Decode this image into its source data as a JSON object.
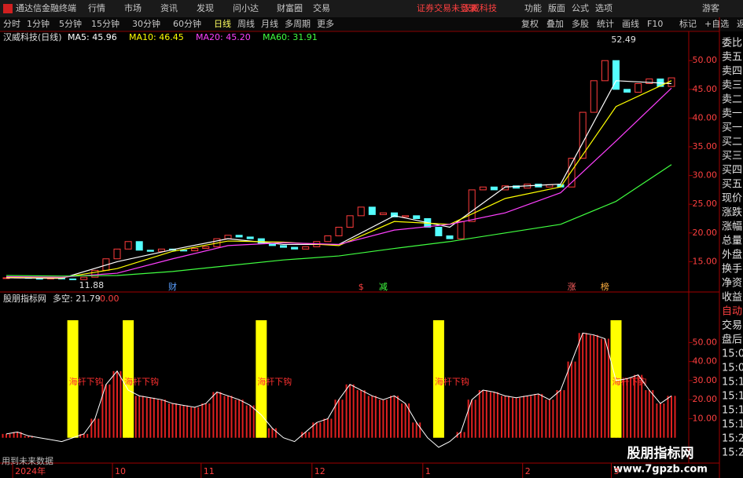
{
  "menu": {
    "logo": "通达信金融终端",
    "items": [
      "行情",
      "市场",
      "资讯",
      "发现",
      "问小达",
      "财富圈",
      "交易"
    ],
    "notice": "证券交易未登录",
    "stock": "汉威科技",
    "right": [
      "功能",
      "版面",
      "公式",
      "选项"
    ],
    "user": "游客"
  },
  "toolbar": {
    "periods": [
      "分时",
      "1分钟",
      "5分钟",
      "15分钟",
      "30分钟",
      "60分钟",
      "日线",
      "周线",
      "月线",
      "多周期",
      "更多"
    ],
    "active": "日线",
    "right": [
      "复权",
      "叠加",
      "多股",
      "统计",
      "画线",
      "F10",
      "标记",
      "+自选",
      "返回"
    ]
  },
  "side_panel": [
    "委比",
    "卖五",
    "卖四",
    "卖三",
    "卖二",
    "卖一",
    "买一",
    "买二",
    "买三",
    "买四",
    "买五",
    "现价",
    "涨跌",
    "涨幅",
    "总量",
    "外盘",
    "换手",
    "净资",
    "收益",
    "自动",
    "交易",
    "盘后",
    "15:00",
    "15:08",
    "15:11",
    "15:11",
    "15:15",
    "15:19",
    "15:25",
    "15:29"
  ],
  "price_chart": {
    "type": "candlestick",
    "title": "汉威科技(日线)",
    "ma_labels": [
      {
        "text": "MA5: 45.96",
        "color": "#ffffff"
      },
      {
        "text": "MA10: 46.45",
        "color": "#ffff00"
      },
      {
        "text": "MA20: 45.20",
        "color": "#ff40ff"
      },
      {
        "text": "MA60: 31.91",
        "color": "#40ff40"
      }
    ],
    "close": [
      12.2,
      12.3,
      12.1,
      12.0,
      12.2,
      12.0,
      11.9,
      12.3,
      13.5,
      15.5,
      17.2,
      18.5,
      17.0,
      16.8,
      17.2,
      17.0,
      16.9,
      17.3,
      17.6,
      19.0,
      19.6,
      19.3,
      19.0,
      18.2,
      17.8,
      17.5,
      17.2,
      17.6,
      18.5,
      19.5,
      21.0,
      23.0,
      24.5,
      23.2,
      23.5,
      22.8,
      23.0,
      22.5,
      21.0,
      19.5,
      19.0,
      22.0,
      27.5,
      28.0,
      27.5,
      28.2,
      27.8,
      28.5,
      28.0,
      28.4,
      28.0,
      33.0,
      41.0,
      46.5,
      50.0,
      45.0,
      44.5,
      46.0,
      46.8,
      45.5,
      47.0
    ],
    "up_color": "#ff3c3c",
    "down_color": "#54ffff",
    "ma_x": [
      0,
      5,
      10,
      15,
      20,
      25,
      30,
      35,
      40,
      45,
      50,
      55,
      60
    ],
    "ma_series": [
      {
        "color": "#ffffff",
        "values": [
          12.2,
          12.1,
          15.0,
          17.1,
          19.0,
          18.0,
          18.0,
          23.0,
          21.0,
          28.0,
          28.5,
          46.5,
          46.0
        ]
      },
      {
        "color": "#ffff00",
        "values": [
          12.3,
          12.2,
          13.8,
          16.8,
          18.6,
          18.4,
          17.8,
          22.0,
          21.5,
          26.0,
          28.0,
          42.0,
          46.5
        ]
      },
      {
        "color": "#ff40ff",
        "values": [
          12.4,
          12.3,
          13.0,
          15.5,
          17.8,
          18.3,
          18.0,
          20.5,
          21.5,
          23.5,
          27.0,
          36.0,
          45.2
        ]
      },
      {
        "color": "#40ff40",
        "values": [
          12.6,
          12.5,
          12.6,
          13.3,
          14.3,
          15.3,
          16.0,
          17.3,
          18.5,
          20.0,
          21.5,
          25.5,
          31.9
        ]
      }
    ],
    "high": {
      "value": 52.49,
      "index": 54
    },
    "low": {
      "value": 11.88,
      "index": 6
    },
    "events": [
      {
        "label": "财",
        "index": 15,
        "color": "#5aa0ff"
      },
      {
        "label": "$",
        "index": 32,
        "color": "#ff4040"
      },
      {
        "label": "减",
        "index": 34,
        "color": "#40ff40"
      },
      {
        "label": "涨",
        "index": 51,
        "color": "#ff6060"
      },
      {
        "label": "榜",
        "index": 54,
        "color": "#ffb040"
      }
    ],
    "ylim": [
      10,
      54.4
    ],
    "yticks": [
      {
        "value": 15,
        "label": "15.00"
      },
      {
        "value": 20,
        "label": "20.00"
      },
      {
        "value": 25,
        "label": "25.00"
      },
      {
        "value": 30,
        "label": "30.00"
      },
      {
        "value": 35,
        "label": "35.00"
      },
      {
        "value": 40,
        "label": "40.00"
      },
      {
        "value": 45,
        "label": "45.00"
      },
      {
        "value": 50,
        "label": "50.00"
      }
    ]
  },
  "indicator": {
    "type": "bar",
    "name": "股朋指标网",
    "value_text": "多空: 21.79",
    "zero_text": "0.00",
    "values": [
      2,
      3,
      1,
      0,
      -1,
      -2,
      0,
      2,
      10,
      28,
      35,
      25,
      22,
      21,
      20,
      18,
      17,
      16,
      18,
      24,
      22,
      20,
      17,
      12,
      5,
      0,
      -2,
      3,
      8,
      10,
      20,
      28,
      25,
      22,
      20,
      22,
      18,
      8,
      0,
      -5,
      -2,
      3,
      20,
      25,
      24,
      22,
      21,
      22,
      23,
      20,
      25,
      40,
      55,
      54,
      52,
      30,
      31,
      33,
      25,
      18,
      22
    ],
    "bar_color": "#e02020",
    "line_color": "#ffffff",
    "signals": [
      6,
      11,
      23,
      39,
      55
    ],
    "signal_color": "#ffff00",
    "signal_text": "海杆下钩",
    "ylim": [
      -3,
      65
    ],
    "yticks": [
      {
        "value": 10,
        "label": "10.00"
      },
      {
        "value": 20,
        "label": "20.00"
      },
      {
        "value": 30,
        "label": "30.00"
      },
      {
        "value": 40,
        "label": "40.00"
      },
      {
        "value": 50,
        "label": "50.00"
      }
    ],
    "note": "用到未来数据"
  },
  "x_axis": [
    {
      "label": "2024年",
      "index": 1
    },
    {
      "label": "10",
      "index": 10
    },
    {
      "label": "11",
      "index": 18
    },
    {
      "label": "12",
      "index": 28
    },
    {
      "label": "1",
      "index": 38
    },
    {
      "label": "2",
      "index": 47
    },
    {
      "label": "3",
      "index": 55
    }
  ],
  "watermark": {
    "title": "股朋指标网",
    "url": "www.7gpzb.com"
  }
}
